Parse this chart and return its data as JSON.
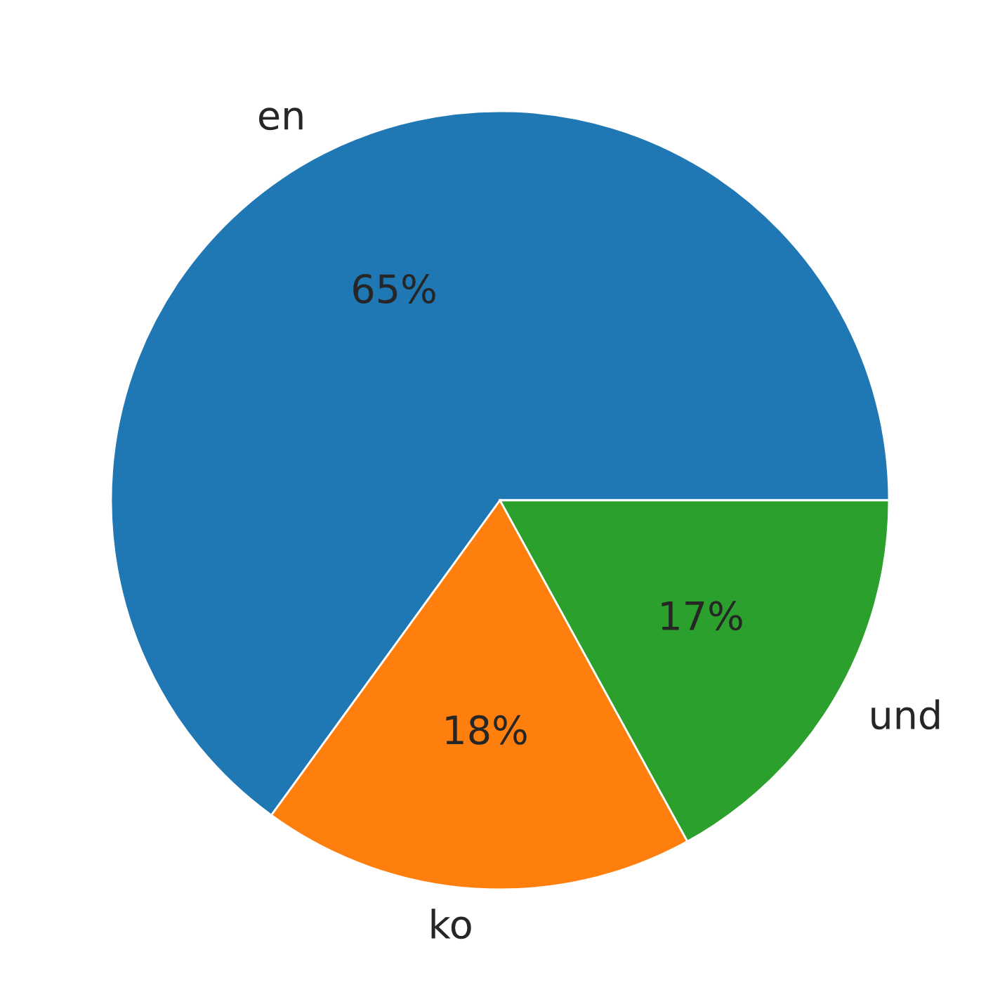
{
  "chart_data": {
    "type": "pie",
    "categories": [
      "en",
      "ko",
      "und"
    ],
    "values": [
      65,
      18,
      17
    ],
    "value_labels": [
      "65%",
      "18%",
      "17%"
    ],
    "colors": [
      "#1f77b4",
      "#ff7f0e",
      "#2ca02c"
    ]
  }
}
